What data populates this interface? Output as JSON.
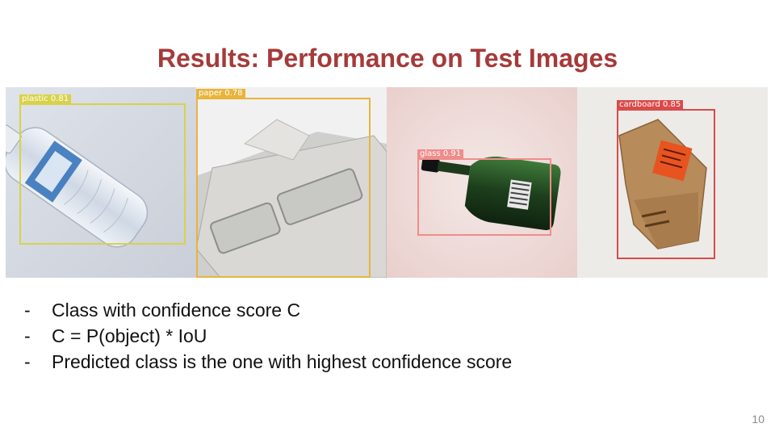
{
  "slide": {
    "title": "Results: Performance on Test Images",
    "page_number": "10"
  },
  "test_images": [
    {
      "label": "plastic 0.81",
      "box_color": "#d8d24a"
    },
    {
      "label": "paper 0.78",
      "box_color": "#e8b43c"
    },
    {
      "label": "glass 0.91",
      "box_color": "#f08c8c"
    },
    {
      "label": "cardboard 0.85",
      "box_color": "#d94b4b"
    }
  ],
  "bullets": [
    {
      "marker": "-",
      "text": "Class with confidence score C"
    },
    {
      "marker": "-",
      "text": "C = P(object) * IoU"
    },
    {
      "marker": "-",
      "text": "Predicted class is the one with highest confidence score"
    }
  ]
}
